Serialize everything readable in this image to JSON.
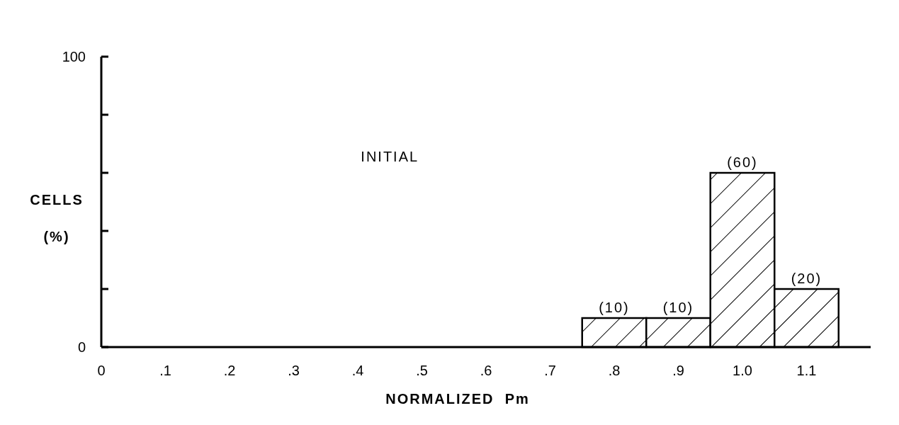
{
  "chart_data": {
    "type": "histogram",
    "bins": [
      0.75,
      0.85,
      0.95,
      1.05,
      1.15
    ],
    "values": [
      10,
      10,
      60,
      20
    ],
    "value_labels": [
      "(10)",
      "(10)",
      "(60)",
      "(20)"
    ],
    "color": "#000000",
    "xlabel": "NORMALIZED  Pm",
    "ylabel": "CELLS (%)",
    "annotations": [
      "INITIAL"
    ],
    "xlim": [
      0,
      1.2
    ],
    "xticks": [
      0,
      {
        "value": 0.1,
        "label": ".1"
      },
      {
        "value": 0.2,
        "label": ".2"
      },
      {
        "value": 0.3,
        "label": ".3"
      },
      {
        "value": 0.4,
        "label": ".4"
      },
      {
        "value": 0.5,
        "label": ".5"
      },
      {
        "value": 0.6,
        "label": ".6"
      },
      {
        "value": 0.7,
        "label": ".7"
      },
      {
        "value": 0.8,
        "label": ".8"
      },
      {
        "value": 0.9,
        "label": ".9"
      },
      {
        "value": 1.0,
        "label": "1.0"
      },
      {
        "value": 1.1,
        "label": "1.1"
      }
    ],
    "ylim": [
      0,
      100
    ],
    "yticks": [
      0,
      {
        "value": 20,
        "label": null
      },
      {
        "value": 40,
        "label": null
      },
      {
        "value": 60,
        "label": null
      },
      {
        "value": 80,
        "label": null
      },
      100
    ],
    "grid": false
  }
}
